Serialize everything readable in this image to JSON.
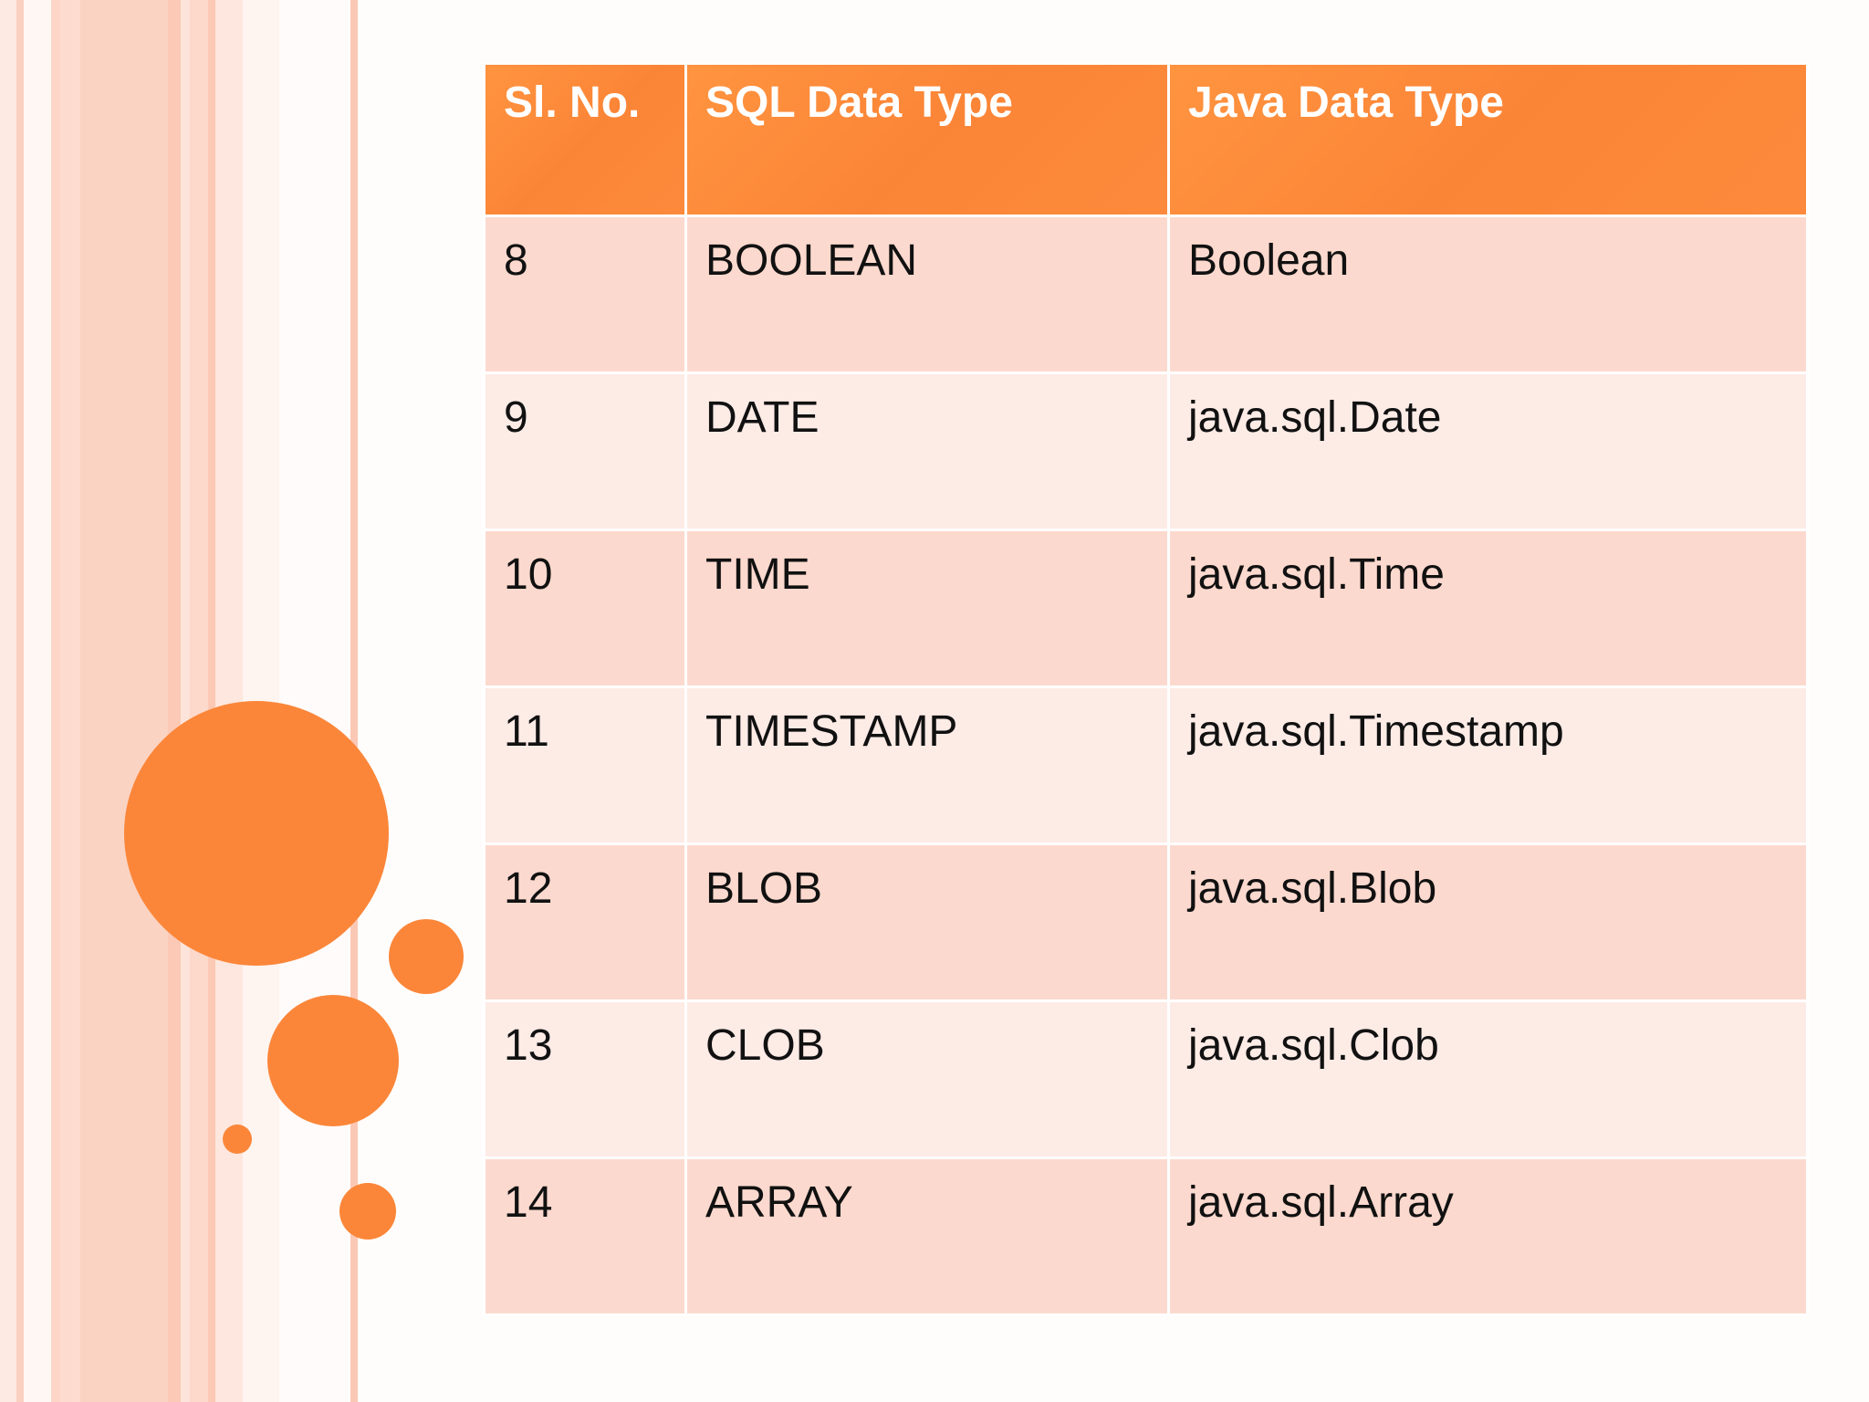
{
  "table": {
    "headers": [
      "Sl. No.",
      "SQL Data Type",
      "Java Data Type"
    ],
    "rows": [
      [
        "8",
        "BOOLEAN",
        "Boolean"
      ],
      [
        "9",
        "DATE",
        "java.sql.Date"
      ],
      [
        "10",
        "TIME",
        "java.sql.Time"
      ],
      [
        "11",
        "TIMESTAMP",
        "java.sql.Timestamp"
      ],
      [
        "12",
        "BLOB",
        "java.sql.Blob"
      ],
      [
        "13",
        "CLOB",
        "java.sql.Clob"
      ],
      [
        "14",
        "ARRAY",
        "java.sql.Array"
      ]
    ]
  },
  "colors": {
    "accent": "#fb8639",
    "header_bg": "#fb8537",
    "row_dark": "#fcd9ce",
    "row_light": "#fdebe6"
  }
}
